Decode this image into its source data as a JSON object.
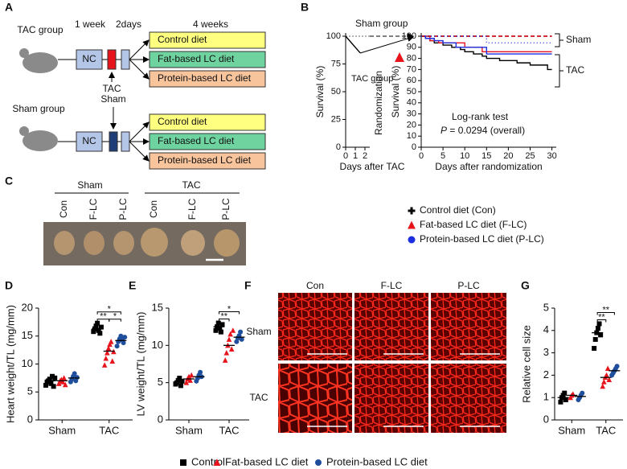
{
  "panel_labels": [
    "A",
    "B",
    "C",
    "D",
    "E",
    "F",
    "G"
  ],
  "panel_a": {
    "tac_group": "TAC group",
    "sham_group": "Sham group",
    "periods": [
      "1 week",
      "2days",
      "4 weeks"
    ],
    "nc": "NC",
    "tac": "TAC",
    "sham": "Sham",
    "diets": [
      "Control diet",
      "Fat-based LC diet",
      "Protein-based LC diet"
    ]
  },
  "panel_c": {
    "groups": [
      "Sham",
      "TAC"
    ],
    "diets": [
      "Con",
      "F-LC",
      "P-LC"
    ]
  },
  "panel_f": {
    "columns": [
      "Con",
      "F-LC",
      "P-LC"
    ],
    "rows": [
      "Sham",
      "TAC"
    ]
  },
  "legend": [
    "Control",
    "Fat-based LC diet",
    "Protein-based LC diet"
  ],
  "chart_data": [
    {
      "type": "line",
      "ylabel": "Survival (%)",
      "xlabel": "Days after TAC",
      "annotations": [
        "Sham group",
        "TAC group",
        "Randomization"
      ],
      "xlim": [
        0,
        2.5
      ],
      "xticks": [
        0,
        1,
        2
      ],
      "ylim": [
        0,
        100
      ],
      "yticks": [
        0,
        25,
        50,
        75,
        100
      ],
      "series": [
        {
          "color": "#999999",
          "dash": "2,2",
          "x": [
            0,
            2.5
          ],
          "values": [
            100,
            100
          ]
        },
        {
          "color": "#000000",
          "x": [
            0,
            1.5
          ],
          "values": [
            100,
            85
          ]
        }
      ]
    },
    {
      "type": "step",
      "ylabel": "Survival (%)",
      "xlabel": "Days after randomization",
      "annotations": [
        "Sham",
        "TAC",
        "Log-rank test"
      ],
      "p_symbol": "P",
      "p_text": " = 0.0294 (overall)",
      "xlim": [
        0,
        31
      ],
      "xticks": [
        0,
        5,
        10,
        15,
        20,
        25,
        30
      ],
      "ylim": [
        0,
        100
      ],
      "yticks": [
        0,
        10,
        20,
        30,
        40,
        50,
        60,
        70,
        80,
        90,
        100
      ],
      "series": [
        {
          "name": "Control diet (Con)",
          "color": "#000000",
          "marker": "plus",
          "x": [
            0,
            1,
            2,
            3,
            5,
            7,
            9,
            10,
            12,
            14,
            15,
            18,
            22,
            25,
            29,
            30
          ],
          "values": [
            100,
            98,
            96,
            94,
            92,
            90,
            88,
            86,
            84,
            82,
            80,
            78,
            76,
            74,
            70,
            70
          ]
        },
        {
          "name": "Fat-based LC diet (F-LC)",
          "color": "#e8141c",
          "marker": "triangle",
          "x": [
            0,
            2,
            4,
            10,
            14,
            30
          ],
          "values": [
            100,
            96,
            94,
            90,
            86,
            86
          ]
        },
        {
          "name": "Protein-based LC diet (P-LC)",
          "color": "#1c2ee0",
          "marker": "circle",
          "x": [
            0,
            1,
            3,
            5,
            8,
            15,
            30
          ],
          "values": [
            100,
            98,
            96,
            94,
            90,
            84,
            84
          ]
        },
        {
          "color": "#000000",
          "dash": "5,3",
          "x": [
            0,
            30
          ],
          "values": [
            100,
            100
          ]
        },
        {
          "color": "#e8141c",
          "dash": "5,3",
          "x": [
            0,
            30
          ],
          "values": [
            100,
            100
          ]
        },
        {
          "color": "#1c2ee0",
          "dash": "1,3",
          "x": [
            0,
            15,
            30
          ],
          "values": [
            100,
            94,
            94
          ]
        }
      ]
    },
    {
      "type": "dot",
      "ylabel": "Heart weight/TL (mg/mm)",
      "categories": [
        "Sham",
        "TAC"
      ],
      "ylim": [
        0,
        20
      ],
      "yticks": [
        0,
        5,
        10,
        15,
        20
      ],
      "significance": [
        "*",
        "**",
        "*"
      ],
      "series": [
        {
          "name": "Control",
          "color": "#000000",
          "marker": "square",
          "values": [
            [
              6.2,
              6.8,
              7.0,
              7.3,
              6.5,
              7.8,
              6.0,
              7.5
            ],
            [
              15.8,
              16.3,
              16.8,
              17.3,
              16.0,
              15.5,
              16.6
            ]
          ],
          "means": [
            7.0,
            16.3
          ]
        },
        {
          "name": "Fat-based LC diet",
          "color": "#e8141c",
          "marker": "triangle",
          "values": [
            [
              6.5,
              7.0,
              7.2,
              6.8,
              7.5,
              6.3
            ],
            [
              9.8,
              11.0,
              12.0,
              12.8,
              13.5,
              14.0,
              10.5,
              12.2
            ]
          ],
          "means": [
            7.0,
            12.3
          ]
        },
        {
          "name": "Protein-based LC diet",
          "color": "#1f4e9c",
          "marker": "circle",
          "values": [
            [
              6.8,
              7.3,
              7.8,
              8.3,
              7.0,
              7.6
            ],
            [
              13.2,
              14.0,
              14.5,
              15.0,
              14.3,
              13.8,
              14.8
            ]
          ],
          "means": [
            7.5,
            14.2
          ]
        }
      ]
    },
    {
      "type": "dot",
      "ylabel": "LV weight/TL (mg/mm)",
      "categories": [
        "Sham",
        "TAC"
      ],
      "ylim": [
        0,
        15
      ],
      "yticks": [
        0,
        5,
        10,
        15
      ],
      "significance": [
        "*",
        "**"
      ],
      "series": [
        {
          "color": "#000000",
          "marker": "square",
          "values": [
            [
              4.8,
              5.0,
              5.3,
              5.6,
              4.6,
              5.2
            ],
            [
              12.0,
              12.5,
              13.0,
              12.3,
              11.8,
              12.8
            ]
          ],
          "means": [
            5.1,
            12.5
          ]
        },
        {
          "color": "#e8141c",
          "marker": "triangle",
          "values": [
            [
              5.0,
              5.5,
              5.8,
              5.3,
              6.0
            ],
            [
              8.0,
              9.0,
              10.0,
              10.8,
              11.5,
              9.5,
              12.0
            ]
          ],
          "means": [
            5.5,
            10.0
          ]
        },
        {
          "color": "#1f4e9c",
          "marker": "circle",
          "values": [
            [
              5.2,
              5.6,
              6.0,
              6.4,
              5.8
            ],
            [
              10.5,
              11.0,
              11.3,
              11.8,
              10.8
            ]
          ],
          "means": [
            5.8,
            11.1
          ]
        }
      ]
    },
    {
      "type": "dot",
      "ylabel": "Relative cell size",
      "categories": [
        "Sham",
        "TAC"
      ],
      "ylim": [
        0,
        5
      ],
      "yticks": [
        0,
        1,
        2,
        3,
        4,
        5
      ],
      "significance": [
        "**",
        "**"
      ],
      "series": [
        {
          "color": "#000000",
          "marker": "square",
          "values": [
            [
              0.8,
              1.0,
              1.1,
              1.2,
              0.9
            ],
            [
              3.2,
              3.6,
              3.9,
              4.1,
              4.3,
              3.8
            ]
          ],
          "means": [
            1.0,
            3.9
          ]
        },
        {
          "color": "#e8141c",
          "marker": "triangle",
          "values": [
            [
              1.0,
              1.1,
              1.15
            ],
            [
              1.5,
              1.7,
              1.9,
              2.0,
              2.3,
              1.8
            ]
          ],
          "means": [
            1.1,
            1.9
          ]
        },
        {
          "color": "#1f4e9c",
          "marker": "circle",
          "values": [
            [
              0.9,
              1.0,
              1.1,
              1.2
            ],
            [
              2.0,
              2.1,
              2.2,
              2.3,
              2.4
            ]
          ],
          "means": [
            1.05,
            2.2
          ]
        }
      ]
    }
  ]
}
